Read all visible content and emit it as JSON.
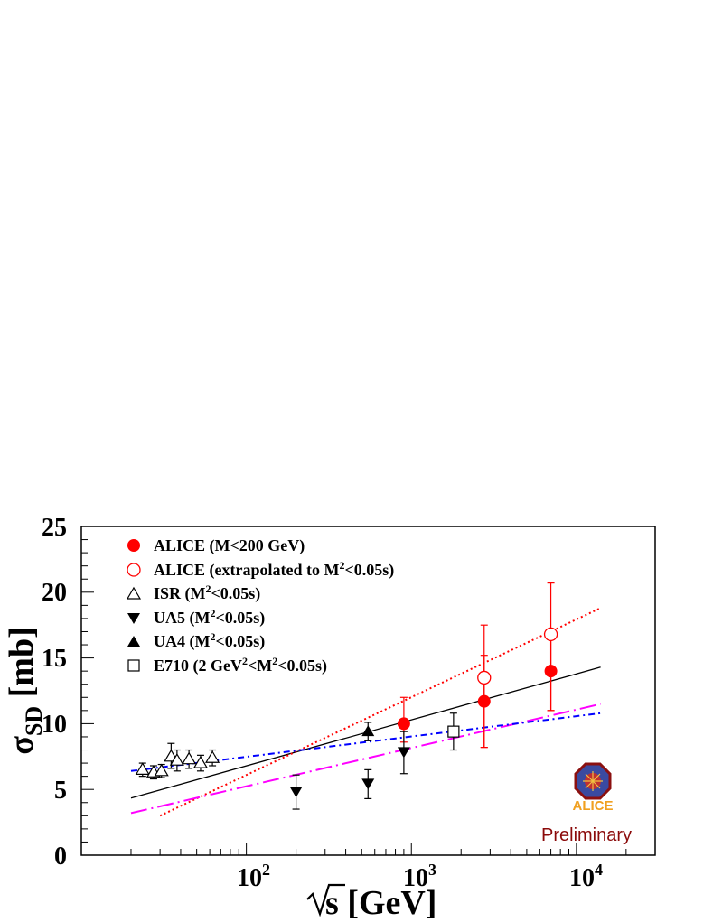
{
  "chart_data": {
    "type": "scatter",
    "x_scale": "log",
    "xlim": [
      10,
      30000
    ],
    "ylim": [
      0,
      25
    ],
    "xlabel": "√s [GeV]",
    "ylabel": "σ_SD [mb]",
    "x_ticks": [
      "10^2",
      "10^3",
      "10^4"
    ],
    "y_ticks": [
      "0",
      "5",
      "10",
      "15",
      "20",
      "25"
    ],
    "series": [
      {
        "name": "ALICE (M<200 GeV)",
        "marker": "filled-circle",
        "color": "#ff0000",
        "points": [
          {
            "x": 900,
            "y": 10.0,
            "ylo": 8.6,
            "yhi": 12.0
          },
          {
            "x": 2760,
            "y": 11.7,
            "ylo": 8.2,
            "yhi": 15.2
          },
          {
            "x": 7000,
            "y": 14.0,
            "ylo": 11.0,
            "yhi": 17.0
          }
        ]
      },
      {
        "name": "ALICE (extrapolated to M²<0.05s)",
        "marker": "open-circle",
        "color": "#ff0000",
        "points": [
          {
            "x": 2760,
            "y": 13.5,
            "ylo": 8.2,
            "yhi": 17.5
          },
          {
            "x": 7000,
            "y": 16.8,
            "ylo": 11.0,
            "yhi": 20.7
          }
        ]
      },
      {
        "name": "ISR (M²<0.05s)",
        "marker": "open-triangle-up",
        "color": "#000000",
        "points": [
          {
            "x": 23.5,
            "y": 6.5,
            "ylo": 6.0,
            "yhi": 7.0
          },
          {
            "x": 27.4,
            "y": 6.3,
            "ylo": 5.8,
            "yhi": 6.8
          },
          {
            "x": 30.6,
            "y": 6.4,
            "ylo": 5.9,
            "yhi": 6.9
          },
          {
            "x": 35,
            "y": 7.5,
            "ylo": 6.6,
            "yhi": 8.5
          },
          {
            "x": 38,
            "y": 7.2,
            "ylo": 6.4,
            "yhi": 8.0
          },
          {
            "x": 44.9,
            "y": 7.3,
            "ylo": 6.6,
            "yhi": 8.0
          },
          {
            "x": 52.8,
            "y": 7.0,
            "ylo": 6.4,
            "yhi": 7.6
          },
          {
            "x": 62.3,
            "y": 7.4,
            "ylo": 6.8,
            "yhi": 8.0
          }
        ]
      },
      {
        "name": "UA5  (M²<0.05s)",
        "marker": "filled-triangle-down",
        "color": "#000000",
        "points": [
          {
            "x": 200,
            "y": 4.8,
            "ylo": 3.5,
            "yhi": 6.1
          },
          {
            "x": 546,
            "y": 5.4,
            "ylo": 4.3,
            "yhi": 6.5
          },
          {
            "x": 900,
            "y": 7.8,
            "ylo": 6.2,
            "yhi": 9.4
          }
        ]
      },
      {
        "name": "UA4  (M²<0.05s)",
        "marker": "filled-triangle-up",
        "color": "#000000",
        "points": [
          {
            "x": 546,
            "y": 9.4,
            "ylo": 8.7,
            "yhi": 10.1
          }
        ]
      },
      {
        "name": "E710 (2 GeV²<M²<0.05s)",
        "marker": "open-square",
        "color": "#000000",
        "points": [
          {
            "x": 1800,
            "y": 9.4,
            "ylo": 8.0,
            "yhi": 10.8
          }
        ]
      }
    ],
    "curves": [
      {
        "style": "solid",
        "color": "#000000",
        "points": [
          [
            20,
            4.35
          ],
          [
            14000,
            14.3
          ]
        ]
      },
      {
        "style": "dotted",
        "color": "#ff0000",
        "points": [
          [
            30,
            3.0
          ],
          [
            14000,
            18.8
          ]
        ]
      },
      {
        "style": "long-dash-dot",
        "color": "#ff00ff",
        "points": [
          [
            20,
            3.2
          ],
          [
            14000,
            11.5
          ]
        ]
      },
      {
        "style": "dash-dot",
        "color": "#0000ff",
        "points": [
          [
            20,
            6.4
          ],
          [
            14000,
            10.8
          ]
        ]
      }
    ],
    "legend_position": "top-left",
    "annotation": "Preliminary",
    "logo_text": "ALICE"
  }
}
